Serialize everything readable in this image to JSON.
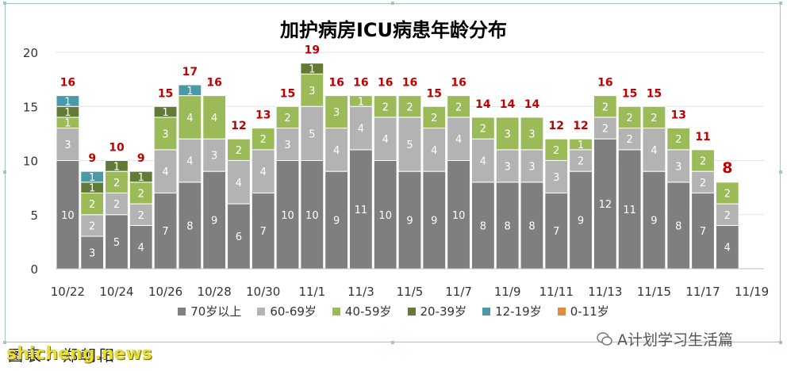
{
  "chart_data": {
    "type": "bar",
    "stacked": true,
    "title": "加护病房ICU病患年龄分布",
    "categories": [
      "10/22",
      "10/23",
      "10/24",
      "10/25",
      "10/26",
      "10/27",
      "10/28",
      "10/29",
      "10/30",
      "10/31",
      "11/1",
      "11/2",
      "11/3",
      "11/4",
      "11/5",
      "11/6",
      "11/7",
      "11/8",
      "11/9",
      "11/10",
      "11/11",
      "11/12",
      "11/13",
      "11/14",
      "11/15",
      "11/16",
      "11/17",
      "11/18",
      "11/19"
    ],
    "x_tick_labels": [
      "10/22",
      "10/24",
      "10/26",
      "10/28",
      "10/30",
      "11/1",
      "11/3",
      "11/5",
      "11/7",
      "11/9",
      "11/11",
      "11/13",
      "11/15",
      "11/17",
      "11/19"
    ],
    "ylim": [
      0,
      20
    ],
    "yticks": [
      0,
      5,
      10,
      15,
      20
    ],
    "grid": true,
    "legend_position": "bottom",
    "series": [
      {
        "name": "70岁以上",
        "color": "#7f7f7f",
        "values": [
          10,
          3,
          5,
          4,
          7,
          8,
          9,
          6,
          7,
          10,
          10,
          9,
          11,
          10,
          9,
          9,
          10,
          8,
          8,
          8,
          7,
          9,
          12,
          11,
          9,
          8,
          7,
          4,
          null
        ]
      },
      {
        "name": "60-69岁",
        "color": "#b3b3b3",
        "values": [
          3,
          2,
          2,
          2,
          4,
          4,
          3,
          4,
          4,
          3,
          5,
          4,
          4,
          4,
          5,
          4,
          4,
          4,
          3,
          3,
          3,
          2,
          2,
          2,
          4,
          3,
          2,
          2,
          null
        ]
      },
      {
        "name": "40-59岁",
        "color": "#9bbb59",
        "values": [
          1,
          2,
          2,
          2,
          3,
          4,
          4,
          2,
          2,
          2,
          3,
          3,
          1,
          2,
          2,
          2,
          2,
          2,
          3,
          3,
          2,
          1,
          2,
          2,
          2,
          2,
          2,
          2,
          null
        ]
      },
      {
        "name": "20-39岁",
        "color": "#637a38",
        "values": [
          1,
          1,
          1,
          1,
          1,
          0,
          0,
          0,
          0,
          0,
          1,
          0,
          0,
          0,
          0,
          0,
          0,
          0,
          0,
          0,
          0,
          0,
          0,
          0,
          0,
          0,
          0,
          0,
          null
        ]
      },
      {
        "name": "12-19岁",
        "color": "#4a98a8",
        "values": [
          1,
          1,
          0,
          0,
          0,
          1,
          0,
          0,
          0,
          0,
          0,
          0,
          0,
          0,
          0,
          0,
          0,
          0,
          0,
          0,
          0,
          0,
          0,
          0,
          0,
          0,
          0,
          0,
          null
        ]
      },
      {
        "name": "0-11岁",
        "color": "#e38b3c",
        "values": [
          0,
          0,
          0,
          0,
          0,
          0,
          0,
          0,
          0,
          0,
          0,
          0,
          0,
          0,
          0,
          0,
          0,
          0,
          0,
          0,
          0,
          0,
          0,
          0,
          0,
          0,
          0,
          0,
          null
        ]
      }
    ],
    "totals": [
      16,
      9,
      10,
      9,
      15,
      17,
      16,
      12,
      13,
      15,
      19,
      16,
      16,
      16,
      16,
      15,
      16,
      14,
      14,
      14,
      12,
      12,
      16,
      15,
      15,
      13,
      11,
      8,
      null
    ],
    "total_label_color": "#c00000",
    "highlight_last_total": true
  },
  "footer": {
    "caption": "图表：郑朝阳",
    "site": "shicheng.news",
    "watermark": "A计划学习生活篇"
  }
}
